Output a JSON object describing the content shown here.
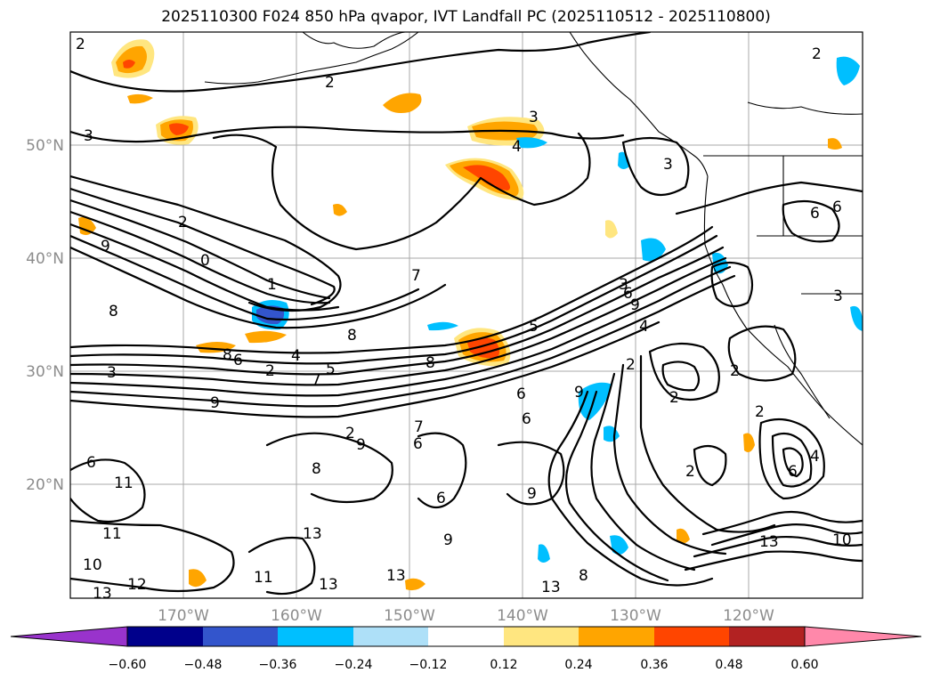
{
  "title": "2025110300 F024 850 hPa qvapor, IVT Landfall PC (2025110512 - 2025110800)",
  "lat_ticks": [
    "50°N",
    "40°N",
    "30°N",
    "20°N"
  ],
  "lon_ticks": [
    "170°W",
    "160°W",
    "150°W",
    "140°W",
    "130°W",
    "120°W"
  ],
  "colorbar": {
    "ticks": [
      "−0.60",
      "−0.48",
      "−0.36",
      "−0.24",
      "−0.12",
      "0.12",
      "0.24",
      "0.36",
      "0.48",
      "0.60"
    ],
    "colors": [
      "#9933cc",
      "#00008b",
      "#3355cc",
      "#00bfff",
      "#aee0f8",
      "#ffffff",
      "#ffe680",
      "#ffa500",
      "#ff4500",
      "#b22222",
      "#ff88aa"
    ]
  },
  "contour_labels": [
    "2",
    "2",
    "2",
    "3",
    "3",
    "3",
    "4",
    "2",
    "0",
    "1",
    "8",
    "9",
    "8",
    "7",
    "5",
    "8",
    "3",
    "6",
    "2",
    "7",
    "5",
    "4",
    "8",
    "9",
    "3",
    "6",
    "9",
    "2",
    "2",
    "6",
    "9",
    "11",
    "8",
    "6",
    "7",
    "6",
    "9",
    "6",
    "2",
    "9",
    "13",
    "11",
    "10",
    "12",
    "13",
    "11",
    "13",
    "13",
    "13",
    "4",
    "6",
    "6",
    "3",
    "2",
    "2",
    "9",
    "10",
    "13",
    "6",
    "4",
    "6",
    "8",
    "2"
  ]
}
